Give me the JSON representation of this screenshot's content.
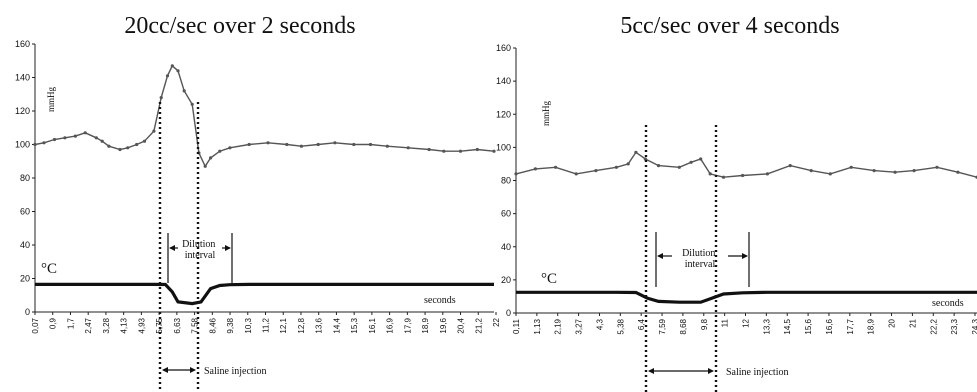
{
  "chart_data": [
    {
      "type": "line",
      "title": "20cc/sec over 2 seconds",
      "ylim": [
        0,
        160
      ],
      "y_ticks": [
        "0",
        "20",
        "40",
        "60",
        "80",
        "100",
        "120",
        "140",
        "160"
      ],
      "x_tick_labels": [
        "0,07",
        "0,9",
        "1,7",
        "2,47",
        "3,28",
        "4,13",
        "4,93",
        "5,75",
        "6,63",
        "7,58",
        "8,46",
        "9,38",
        "10,3",
        "11,2",
        "12,1",
        "12,8",
        "13,6",
        "14,4",
        "15,3",
        "16,1",
        "16,9",
        "17,9",
        "18,9",
        "19,6",
        "20,4",
        "21,2",
        "22"
      ],
      "pressure_unit_label": "mmHg",
      "temperature_unit_label": "°C",
      "x_unit_label": "seconds",
      "grid": false,
      "series": [
        {
          "points": [
            [
              0.07,
              100
            ],
            [
              0.5,
              101
            ],
            [
              1.0,
              103
            ],
            [
              1.5,
              104
            ],
            [
              2.0,
              105
            ],
            [
              2.47,
              107
            ],
            [
              3.0,
              104
            ],
            [
              3.28,
              102
            ],
            [
              3.6,
              99
            ],
            [
              4.13,
              97
            ],
            [
              4.5,
              98
            ],
            [
              4.93,
              100
            ],
            [
              5.3,
              102
            ],
            [
              5.75,
              108
            ],
            [
              6.1,
              128
            ],
            [
              6.4,
              141
            ],
            [
              6.63,
              147
            ],
            [
              6.9,
              144
            ],
            [
              7.2,
              132
            ],
            [
              7.58,
              124
            ],
            [
              7.9,
              95
            ],
            [
              8.2,
              87
            ],
            [
              8.46,
              92
            ],
            [
              8.9,
              96
            ],
            [
              9.38,
              98
            ],
            [
              10.3,
              100
            ],
            [
              11.2,
              101
            ],
            [
              12.1,
              100
            ],
            [
              12.8,
              99
            ],
            [
              13.6,
              100
            ],
            [
              14.4,
              101
            ],
            [
              15.3,
              100
            ],
            [
              16.1,
              100
            ],
            [
              16.9,
              99
            ],
            [
              17.9,
              98
            ],
            [
              18.9,
              97
            ],
            [
              19.6,
              96
            ],
            [
              20.4,
              96
            ],
            [
              21.2,
              97
            ],
            [
              22,
              96
            ]
          ]
        },
        {
          "points": [
            [
              0.07,
              16.5
            ],
            [
              4.93,
              16.5
            ],
            [
              5.75,
              16.5
            ],
            [
              6.3,
              16.4
            ],
            [
              6.63,
              12
            ],
            [
              6.9,
              6
            ],
            [
              7.58,
              5
            ],
            [
              8.0,
              6
            ],
            [
              8.46,
              14
            ],
            [
              8.9,
              15.8
            ],
            [
              9.38,
              16.3
            ],
            [
              10.3,
              16.5
            ],
            [
              22,
              16.5
            ]
          ]
        }
      ],
      "annotations": {
        "dilution_interval": "Dilution\ninterval",
        "saline_injection": "Saline injection"
      }
    },
    {
      "type": "line",
      "title": "5cc/sec over 4 seconds",
      "ylim": [
        0,
        160
      ],
      "y_ticks": [
        "0",
        "20",
        "40",
        "60",
        "80",
        "100",
        "120",
        "140",
        "160"
      ],
      "x_tick_labels": [
        "0,11",
        "1,13",
        "2,19",
        "3,27",
        "4,3",
        "5,38",
        "6,4",
        "7,59",
        "8,68",
        "9,8",
        "11",
        "12",
        "13,3",
        "14,5",
        "15,6",
        "16,6",
        "17,7",
        "18,9",
        "20",
        "21",
        "22,2",
        "23,3",
        "24,3"
      ],
      "pressure_unit_label": "mmHg",
      "temperature_unit_label": "°C",
      "x_unit_label": "seconds",
      "grid": false,
      "series": [
        {
          "points": [
            [
              0.11,
              84
            ],
            [
              1.13,
              87
            ],
            [
              2.19,
              88
            ],
            [
              3.27,
              84
            ],
            [
              4.3,
              86
            ],
            [
              5.38,
              88
            ],
            [
              6.0,
              90
            ],
            [
              6.4,
              97
            ],
            [
              6.9,
              93
            ],
            [
              7.59,
              89
            ],
            [
              8.68,
              88
            ],
            [
              9.3,
              91
            ],
            [
              9.8,
              93
            ],
            [
              10.3,
              84
            ],
            [
              11,
              82
            ],
            [
              12,
              83
            ],
            [
              13.3,
              84
            ],
            [
              14.5,
              89
            ],
            [
              15.6,
              86
            ],
            [
              16.6,
              84
            ],
            [
              17.7,
              88
            ],
            [
              18.9,
              86
            ],
            [
              20,
              85
            ],
            [
              21,
              86
            ],
            [
              22.2,
              88
            ],
            [
              23.3,
              85
            ],
            [
              24.3,
              82
            ]
          ]
        },
        {
          "points": [
            [
              0.11,
              12.5
            ],
            [
              5.38,
              12.5
            ],
            [
              6.4,
              12.4
            ],
            [
              7.0,
              9
            ],
            [
              7.59,
              7
            ],
            [
              8.68,
              6.5
            ],
            [
              9.8,
              6.5
            ],
            [
              10.4,
              9
            ],
            [
              11,
              11.5
            ],
            [
              12,
              12.2
            ],
            [
              13.3,
              12.5
            ],
            [
              24.3,
              12.5
            ]
          ]
        }
      ],
      "annotations": {
        "dilution_interval": "Dilution\ninterval",
        "saline_injection": "Saline injection"
      }
    }
  ]
}
